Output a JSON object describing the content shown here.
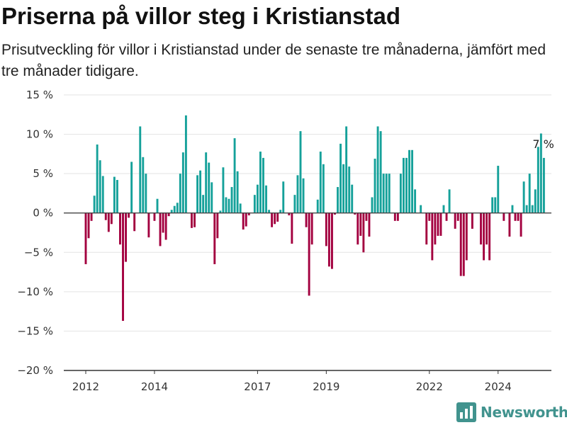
{
  "header": {
    "title": "Priserna på villor steg i Kristianstad",
    "subtitle": "Prisutveckling för villor i Kristianstad under de senaste tre månaderna, jämfört med tre månader tidigare."
  },
  "brand": {
    "name": "Newsworthy",
    "icon": "newsworthy-logo-icon"
  },
  "colors": {
    "positive": "#15a19a",
    "negative": "#a3003f",
    "zero_line": "#444444",
    "grid": "#e3e3e3",
    "axis": "#333333"
  },
  "chart_data": {
    "type": "bar",
    "title": "Priserna på villor steg i Kristianstad",
    "xlabel": "",
    "ylabel": "",
    "ylim": [
      -20,
      15
    ],
    "yticks": [
      15,
      10,
      5,
      0,
      -5,
      -10,
      -15,
      -20
    ],
    "ytick_labels": [
      "15 %",
      "10 %",
      "5 %",
      "0 %",
      "−5 %",
      "−10 %",
      "−15 %",
      "−20 %"
    ],
    "xticks": [
      2012,
      2014,
      2017,
      2019,
      2022,
      2024
    ],
    "xtick_labels": [
      "2012",
      "2014",
      "2017",
      "2019",
      "2022",
      "2024"
    ],
    "grid": true,
    "legend": "none",
    "start": "2012-01",
    "frequency": "monthly",
    "unit": "%",
    "annotation": {
      "label": "7 %",
      "value": 7
    },
    "values": [
      -6.5,
      -3.2,
      -1,
      2.2,
      8.7,
      6.7,
      4.7,
      -0.9,
      -2.4,
      -1.4,
      4.6,
      4.2,
      -4,
      -13.7,
      -6.2,
      -0.6,
      6.5,
      -2.3,
      0,
      11,
      7.1,
      5,
      -3.1,
      0,
      -1,
      1.8,
      -4.2,
      -2.5,
      -3.4,
      -0.4,
      0.4,
      0.9,
      1.3,
      5,
      7.7,
      12.4,
      0,
      -1.9,
      -1.8,
      4.8,
      5.4,
      2.3,
      7.7,
      6.4,
      3.9,
      -6.5,
      -3.2,
      0.3,
      5.8,
      2,
      1.8,
      3.3,
      9.5,
      5.3,
      1.2,
      -2.1,
      -1.7,
      -0.3,
      0,
      2.3,
      3.6,
      7.8,
      7,
      3.5,
      0.4,
      -1.8,
      -1.4,
      -1.1,
      0.4,
      4,
      0,
      -0.3,
      -3.9,
      2.3,
      4.8,
      10.4,
      4.4,
      -1.8,
      -10.5,
      -4,
      0,
      1.7,
      7.8,
      6.2,
      -4.2,
      -6.8,
      -7.1,
      -0.2,
      3.3,
      8.8,
      6.2,
      11,
      5.9,
      3.6,
      -0.2,
      -4,
      -2.9,
      -5,
      -1,
      -3,
      2,
      6.9,
      11,
      10.4,
      5,
      5,
      5,
      0,
      -1,
      -1,
      5,
      7,
      7,
      8,
      8,
      3,
      0,
      1,
      0,
      -4,
      -1,
      -6,
      -4,
      -2.9,
      -2.9,
      1,
      -1,
      3,
      0,
      -2,
      -1,
      -8,
      -8,
      -6,
      0,
      -2,
      0,
      0,
      -4,
      -6,
      -4,
      -6,
      2,
      2,
      6,
      0,
      -1,
      0,
      -3,
      1,
      -1,
      -1,
      -3,
      4,
      1,
      5,
      1,
      3,
      8.4,
      10.1,
      7
    ]
  }
}
